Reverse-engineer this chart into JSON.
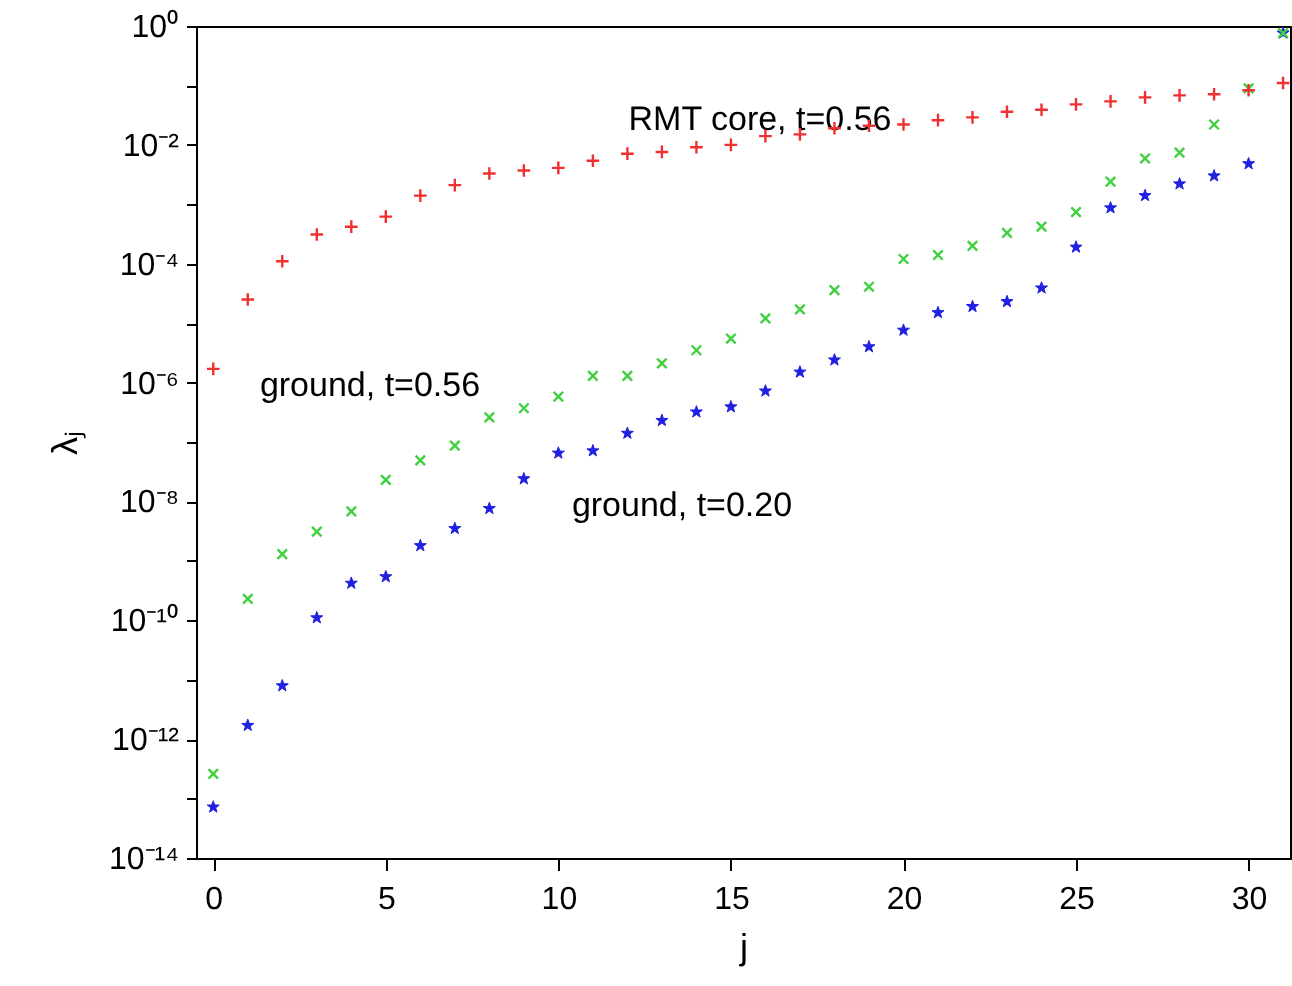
{
  "chart_data": {
    "type": "scatter",
    "xlabel": "j",
    "ylabel": "λⱼ",
    "log": "y",
    "grid": false,
    "x": [
      0,
      1,
      2,
      3,
      4,
      5,
      6,
      7,
      8,
      9,
      10,
      11,
      12,
      13,
      14,
      15,
      16,
      17,
      18,
      19,
      20,
      21,
      22,
      23,
      24,
      25,
      26,
      27,
      28,
      29,
      30,
      31
    ],
    "xlim": [
      -0.5,
      31.2
    ],
    "xticks": [
      0,
      5,
      10,
      15,
      20,
      25,
      30
    ],
    "ylim": [
      1e-14,
      1
    ],
    "yticks": [
      {
        "value": 1e-14,
        "label": "10⁻¹⁴"
      },
      {
        "value": 1e-13,
        "label": null
      },
      {
        "value": 1e-12,
        "label": "10⁻¹²"
      },
      {
        "value": 1e-11,
        "label": null
      },
      {
        "value": 1e-10,
        "label": "10⁻¹⁰"
      },
      {
        "value": 1e-09,
        "label": null
      },
      {
        "value": 1e-08,
        "label": "10⁻⁸"
      },
      {
        "value": 1e-07,
        "label": null
      },
      {
        "value": 1e-06,
        "label": "10⁻⁶"
      },
      {
        "value": 1e-05,
        "label": null
      },
      {
        "value": 0.0001,
        "label": "10⁻⁴"
      },
      {
        "value": 0.001,
        "label": null
      },
      {
        "value": 0.01,
        "label": "10⁻²"
      },
      {
        "value": 0.1,
        "label": null
      },
      {
        "value": 1,
        "label": "10⁰"
      }
    ],
    "series": [
      {
        "color": "#f03030",
        "marker": "plus",
        "values": [
          1.7e-06,
          2.5e-05,
          0.00011,
          0.00031,
          0.00042,
          0.00062,
          0.0014,
          0.0021,
          0.0033,
          0.0037,
          0.0041,
          0.0054,
          0.0071,
          0.0076,
          0.0091,
          0.01,
          0.014,
          0.015,
          0.019,
          0.021,
          0.022,
          0.026,
          0.029,
          0.036,
          0.039,
          0.048,
          0.054,
          0.063,
          0.068,
          0.071,
          0.083,
          0.11
        ]
      },
      {
        "color": "#40d040",
        "marker": "cross",
        "values": [
          2.6e-13,
          2.3e-10,
          1.3e-09,
          3.1e-09,
          6.8e-09,
          2.3e-08,
          4.9e-08,
          8.7e-08,
          2.6e-07,
          3.7e-07,
          5.8e-07,
          1.3e-06,
          1.3e-06,
          2.1e-06,
          3.5e-06,
          5.5e-06,
          1.2e-05,
          1.7e-05,
          3.6e-05,
          4.1e-05,
          0.00012,
          0.00014,
          0.0002,
          0.00033,
          0.00042,
          0.00074,
          0.0024,
          0.0059,
          0.0074,
          0.022,
          0.089,
          0.76
        ]
      },
      {
        "color": "#2020e0",
        "marker": "star",
        "values": [
          7.2e-14,
          1.7e-12,
          7.9e-12,
          1.1e-10,
          4.2e-10,
          5.4e-10,
          1.8e-09,
          3.5e-09,
          7.6e-09,
          2.4e-08,
          6.5e-08,
          7.1e-08,
          1.4e-07,
          2.3e-07,
          3.2e-07,
          3.9e-07,
          7.2e-07,
          1.5e-06,
          2.4e-06,
          4e-06,
          7.6e-06,
          1.5e-05,
          1.9e-05,
          2.3e-05,
          3.9e-05,
          0.00019,
          0.00087,
          0.0014,
          0.0022,
          0.003,
          0.0048,
          0.76
        ]
      }
    ],
    "annotations": [
      "RMT core, t=0.56",
      "ground, t=0.56",
      "ground, t=0.20"
    ]
  }
}
